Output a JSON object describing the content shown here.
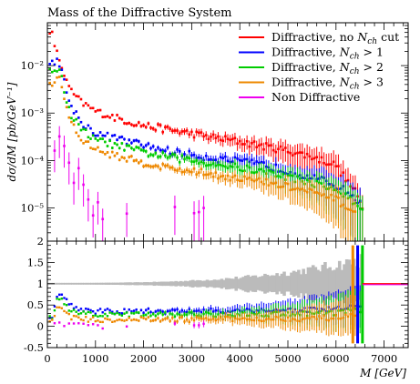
{
  "title": "Mass of the Diffractive System",
  "chart_data": {
    "type": "scatter",
    "title": "Mass of the Diffractive System",
    "xlabel": "M [GeV]",
    "ylabel": "dσ/dM [pb/GeV⁻¹]",
    "xlim": [
      0,
      7500
    ],
    "xticks": [
      0,
      1000,
      2000,
      3000,
      4000,
      5000,
      6000,
      7000
    ],
    "xtick_labels": [
      "0",
      "1000",
      "2000",
      "3000",
      "4000",
      "5000",
      "6000",
      "7000"
    ],
    "main_panel": {
      "yscale": "log",
      "ylim": [
        2e-06,
        0.08
      ],
      "yticks": [
        1e-05,
        0.0001,
        0.001,
        0.01
      ],
      "ytick_labels": [
        "10⁻⁵",
        "10⁻⁴",
        "10⁻³",
        "10⁻²"
      ],
      "legend_position": "top-right"
    },
    "ratio_panel": {
      "yscale": "linear",
      "ylim": [
        -0.5,
        2
      ],
      "yticks": [
        -0.5,
        0,
        0.5,
        1,
        1.5,
        2
      ],
      "ytick_labels": [
        "-0.5",
        "0",
        "0.5",
        "1",
        "1.5",
        "2"
      ],
      "reference_line": 1
    },
    "series": [
      {
        "name": "Diffractive, no N_ch cut",
        "legend_label": "Diffractive, no Nch cut",
        "color": "#ff0000",
        "points": [
          [
            100,
            0.045
          ],
          [
            200,
            0.018
          ],
          [
            300,
            0.0095
          ],
          [
            400,
            0.0045
          ],
          [
            500,
            0.0028
          ],
          [
            700,
            0.0017
          ],
          [
            1000,
            0.0011
          ],
          [
            1500,
            0.00075
          ],
          [
            2000,
            0.00055
          ],
          [
            2500,
            0.00045
          ],
          [
            3000,
            0.00037
          ],
          [
            3500,
            0.0003
          ],
          [
            4000,
            0.00025
          ],
          [
            4500,
            0.0002
          ],
          [
            5000,
            0.00016
          ],
          [
            5500,
            0.00012
          ],
          [
            6000,
            8e-05
          ],
          [
            6200,
            4e-05
          ],
          [
            6400,
            2.2e-05
          ],
          [
            6550,
            1e-05
          ]
        ],
        "ratio": [
          [
            100,
            1
          ],
          [
            1000,
            1
          ],
          [
            2000,
            1
          ],
          [
            3000,
            1
          ],
          [
            4000,
            1
          ],
          [
            5000,
            1
          ],
          [
            6000,
            1
          ],
          [
            7500,
            1
          ]
        ]
      },
      {
        "name": "Diffractive, N_ch > 1",
        "legend_label": "Diffractive, Nch > 1",
        "color": "#0000ff",
        "points": [
          [
            100,
            0.012
          ],
          [
            200,
            0.013
          ],
          [
            300,
            0.0075
          ],
          [
            400,
            0.0028
          ],
          [
            500,
            0.0014
          ],
          [
            700,
            0.00065
          ],
          [
            1000,
            0.00038
          ],
          [
            1500,
            0.00028
          ],
          [
            2000,
            0.00021
          ],
          [
            2500,
            0.00016
          ],
          [
            3000,
            0.00013
          ],
          [
            3500,
            0.00011
          ],
          [
            4000,
            9.5e-05
          ],
          [
            4500,
            8e-05
          ],
          [
            5000,
            6e-05
          ],
          [
            5500,
            4.5e-05
          ],
          [
            6000,
            3e-05
          ],
          [
            6300,
            2e-05
          ],
          [
            6500,
            1.2e-05
          ]
        ],
        "ratio": [
          [
            100,
            0.25
          ],
          [
            200,
            0.75
          ],
          [
            300,
            0.75
          ],
          [
            400,
            0.6
          ],
          [
            500,
            0.5
          ],
          [
            700,
            0.4
          ],
          [
            1000,
            0.35
          ],
          [
            1500,
            0.35
          ],
          [
            2000,
            0.36
          ],
          [
            2500,
            0.35
          ],
          [
            3000,
            0.36
          ],
          [
            3500,
            0.36
          ],
          [
            4000,
            0.37
          ],
          [
            4500,
            0.38
          ],
          [
            5000,
            0.38
          ],
          [
            5500,
            0.38
          ],
          [
            6000,
            0.4
          ],
          [
            6300,
            0.45
          ],
          [
            6500,
            0.5
          ]
        ]
      },
      {
        "name": "Diffractive, N_ch > 2",
        "legend_label": "Diffractive, Nch > 2",
        "color": "#00cc00",
        "points": [
          [
            100,
            0.008
          ],
          [
            200,
            0.009
          ],
          [
            300,
            0.0055
          ],
          [
            400,
            0.0018
          ],
          [
            500,
            0.0009
          ],
          [
            700,
            0.00045
          ],
          [
            1000,
            0.00027
          ],
          [
            1500,
            0.0002
          ],
          [
            2000,
            0.00015
          ],
          [
            2500,
            0.00012
          ],
          [
            3000,
            0.0001
          ],
          [
            3500,
            8.5e-05
          ],
          [
            4000,
            7e-05
          ],
          [
            4500,
            5.8e-05
          ],
          [
            5000,
            4.5e-05
          ],
          [
            5500,
            3.4e-05
          ],
          [
            6000,
            2.4e-05
          ],
          [
            6300,
            1.5e-05
          ],
          [
            6550,
            9e-06
          ]
        ],
        "ratio": [
          [
            100,
            0.2
          ],
          [
            200,
            0.62
          ],
          [
            300,
            0.6
          ],
          [
            400,
            0.45
          ],
          [
            500,
            0.35
          ],
          [
            700,
            0.3
          ],
          [
            1000,
            0.27
          ],
          [
            1500,
            0.27
          ],
          [
            2000,
            0.28
          ],
          [
            2500,
            0.27
          ],
          [
            3000,
            0.28
          ],
          [
            3500,
            0.28
          ],
          [
            4000,
            0.28
          ],
          [
            4500,
            0.29
          ],
          [
            5000,
            0.3
          ],
          [
            5500,
            0.3
          ],
          [
            6000,
            0.32
          ],
          [
            6300,
            0.36
          ],
          [
            6550,
            0.4
          ]
        ]
      },
      {
        "name": "Diffractive, N_ch > 3",
        "legend_label": "Diffractive, Nch > 3",
        "color": "#ee8800",
        "points": [
          [
            100,
            0.004
          ],
          [
            200,
            0.006
          ],
          [
            300,
            0.004
          ],
          [
            400,
            0.0012
          ],
          [
            500,
            0.0006
          ],
          [
            700,
            0.00028
          ],
          [
            1000,
            0.00017
          ],
          [
            1500,
            0.00012
          ],
          [
            2000,
            9e-05
          ],
          [
            2500,
            7e-05
          ],
          [
            3000,
            6e-05
          ],
          [
            3500,
            5e-05
          ],
          [
            4000,
            4.2e-05
          ],
          [
            4500,
            3.5e-05
          ],
          [
            5000,
            2.8e-05
          ],
          [
            5500,
            2.1e-05
          ],
          [
            6000,
            1.5e-05
          ],
          [
            6400,
            8e-06
          ]
        ],
        "ratio": [
          [
            100,
            0.1
          ],
          [
            200,
            0.45
          ],
          [
            300,
            0.42
          ],
          [
            400,
            0.3
          ],
          [
            500,
            0.22
          ],
          [
            700,
            0.17
          ],
          [
            1000,
            0.15
          ],
          [
            1500,
            0.16
          ],
          [
            2000,
            0.16
          ],
          [
            2500,
            0.16
          ],
          [
            3000,
            0.16
          ],
          [
            3500,
            0.17
          ],
          [
            4000,
            0.17
          ],
          [
            4500,
            0.18
          ],
          [
            5000,
            0.18
          ],
          [
            5500,
            0.18
          ],
          [
            6000,
            0.2
          ],
          [
            6400,
            0.25
          ]
        ]
      },
      {
        "name": "Non Diffractive",
        "legend_label": "Non Diffractive",
        "color": "#ee00ee",
        "points": [
          [
            150,
            0.00015
          ],
          [
            250,
            0.0003
          ],
          [
            350,
            0.00018
          ],
          [
            450,
            0.0001
          ],
          [
            550,
            4e-05
          ],
          [
            650,
            6e-05
          ],
          [
            750,
            3e-05
          ],
          [
            850,
            1.5e-05
          ],
          [
            950,
            8e-06
          ],
          [
            1050,
            1.2e-05
          ],
          [
            1150,
            6e-06
          ],
          [
            1650,
            9e-06
          ],
          [
            2650,
            9e-06
          ],
          [
            3050,
            9e-06
          ],
          [
            3150,
            9e-06
          ],
          [
            3250,
            9e-06
          ]
        ],
        "ratio": [
          [
            150,
            0.02
          ],
          [
            250,
            0.03
          ],
          [
            350,
            0.03
          ],
          [
            450,
            0.02
          ],
          [
            550,
            0.01
          ],
          [
            650,
            0.02
          ],
          [
            750,
            0.01
          ],
          [
            850,
            0.01
          ],
          [
            950,
            0.005
          ],
          [
            1050,
            0.01
          ],
          [
            1150,
            0.005
          ],
          [
            1650,
            0.01
          ],
          [
            2650,
            0.01
          ],
          [
            3050,
            0.01
          ],
          [
            3150,
            0.01
          ],
          [
            3250,
            0.01
          ]
        ]
      }
    ]
  }
}
